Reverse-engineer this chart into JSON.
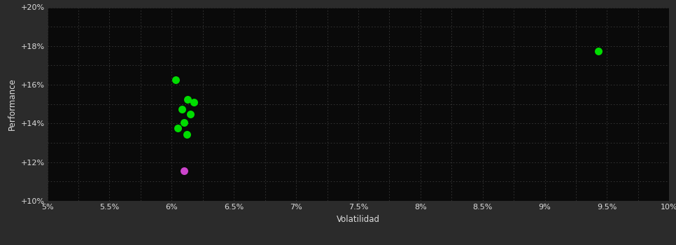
{
  "background_color": "#2b2b2b",
  "plot_bg_color": "#0a0a0a",
  "grid_color": "#3a3a3a",
  "text_color": "#dddddd",
  "xlabel": "Volatilidad",
  "ylabel": "Performance",
  "xlim": [
    0.05,
    0.1
  ],
  "ylim": [
    0.1,
    0.2
  ],
  "xticks": [
    0.05,
    0.055,
    0.06,
    0.065,
    0.07,
    0.075,
    0.08,
    0.085,
    0.09,
    0.095,
    0.1
  ],
  "yticks": [
    0.1,
    0.12,
    0.14,
    0.16,
    0.18,
    0.2
  ],
  "minor_yticks": [
    0.1,
    0.11,
    0.12,
    0.13,
    0.14,
    0.15,
    0.16,
    0.17,
    0.18,
    0.19,
    0.2
  ],
  "green_points": [
    [
      0.0603,
      0.1625
    ],
    [
      0.0613,
      0.1525
    ],
    [
      0.0618,
      0.151
    ],
    [
      0.0608,
      0.1475
    ],
    [
      0.0615,
      0.145
    ],
    [
      0.061,
      0.1405
    ],
    [
      0.0605,
      0.1375
    ],
    [
      0.0612,
      0.1345
    ],
    [
      0.0943,
      0.1775
    ]
  ],
  "magenta_points": [
    [
      0.061,
      0.1155
    ]
  ],
  "green_color": "#00dd00",
  "magenta_color": "#cc44cc",
  "marker_size": 5
}
